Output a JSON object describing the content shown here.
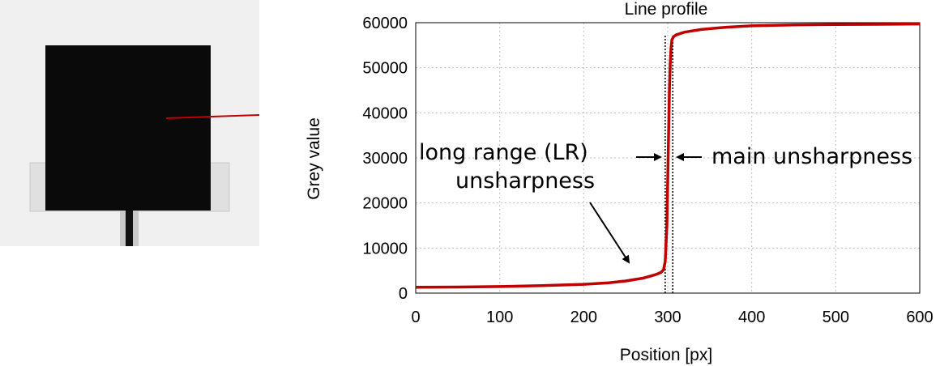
{
  "chart_data": {
    "type": "line",
    "title": "Line profile",
    "xlabel": "Position [px]",
    "ylabel": "Grey value",
    "xlim": [
      0,
      600
    ],
    "ylim": [
      0,
      60000
    ],
    "xticks": [
      0,
      100,
      200,
      300,
      400,
      500,
      600
    ],
    "yticks": [
      0,
      10000,
      20000,
      30000,
      40000,
      50000,
      60000
    ],
    "grid": true,
    "series": [
      {
        "color": "#c00000",
        "x": [
          0,
          50,
          100,
          150,
          200,
          230,
          250,
          270,
          280,
          287,
          292,
          295,
          297,
          299,
          300,
          301,
          302,
          303,
          304,
          305,
          307,
          310,
          320,
          340,
          370,
          400,
          450,
          500,
          550,
          600
        ],
        "y": [
          1300,
          1350,
          1450,
          1650,
          1950,
          2300,
          2700,
          3300,
          3800,
          4200,
          4600,
          5200,
          7000,
          15000,
          25000,
          35000,
          45000,
          51000,
          54500,
          56200,
          56900,
          57300,
          57900,
          58500,
          59000,
          59300,
          59500,
          59600,
          59650,
          59700
        ]
      }
    ],
    "vlines": [
      297,
      306
    ],
    "annotations": [
      {
        "text": "long range (LR)"
      },
      {
        "text": "unsharpness"
      },
      {
        "text": "main unsharpness"
      }
    ]
  },
  "colors": {
    "curve": "#c00000",
    "profile_line": "#c00000",
    "sample": "#000000",
    "photo_background": "#f0f0f0"
  }
}
